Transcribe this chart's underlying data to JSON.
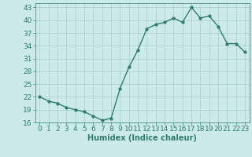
{
  "x": [
    0,
    1,
    2,
    3,
    4,
    5,
    6,
    7,
    8,
    9,
    10,
    11,
    12,
    13,
    14,
    15,
    16,
    17,
    18,
    19,
    20,
    21,
    22,
    23
  ],
  "y": [
    22,
    21,
    20.5,
    19.5,
    19,
    18.5,
    17.5,
    16.5,
    17,
    24,
    29,
    33,
    38,
    39,
    39.5,
    40.5,
    39.5,
    43,
    40.5,
    41,
    38.5,
    34.5,
    34.5,
    32.5
  ],
  "line_color": "#2e7d6e",
  "marker": "o",
  "marker_size": 2.5,
  "bg_color": "#cceae7",
  "grid_color": "#aed4d0",
  "tick_color": "#2e7d6e",
  "xlabel": "Humidex (Indice chaleur)",
  "xlim": [
    -0.5,
    23.5
  ],
  "ylim": [
    16,
    44
  ],
  "yticks": [
    16,
    19,
    22,
    25,
    28,
    31,
    34,
    37,
    40,
    43
  ],
  "xticks": [
    0,
    1,
    2,
    3,
    4,
    5,
    6,
    7,
    8,
    9,
    10,
    11,
    12,
    13,
    14,
    15,
    16,
    17,
    18,
    19,
    20,
    21,
    22,
    23
  ],
  "label_fontsize": 7,
  "tick_fontsize": 6.5
}
